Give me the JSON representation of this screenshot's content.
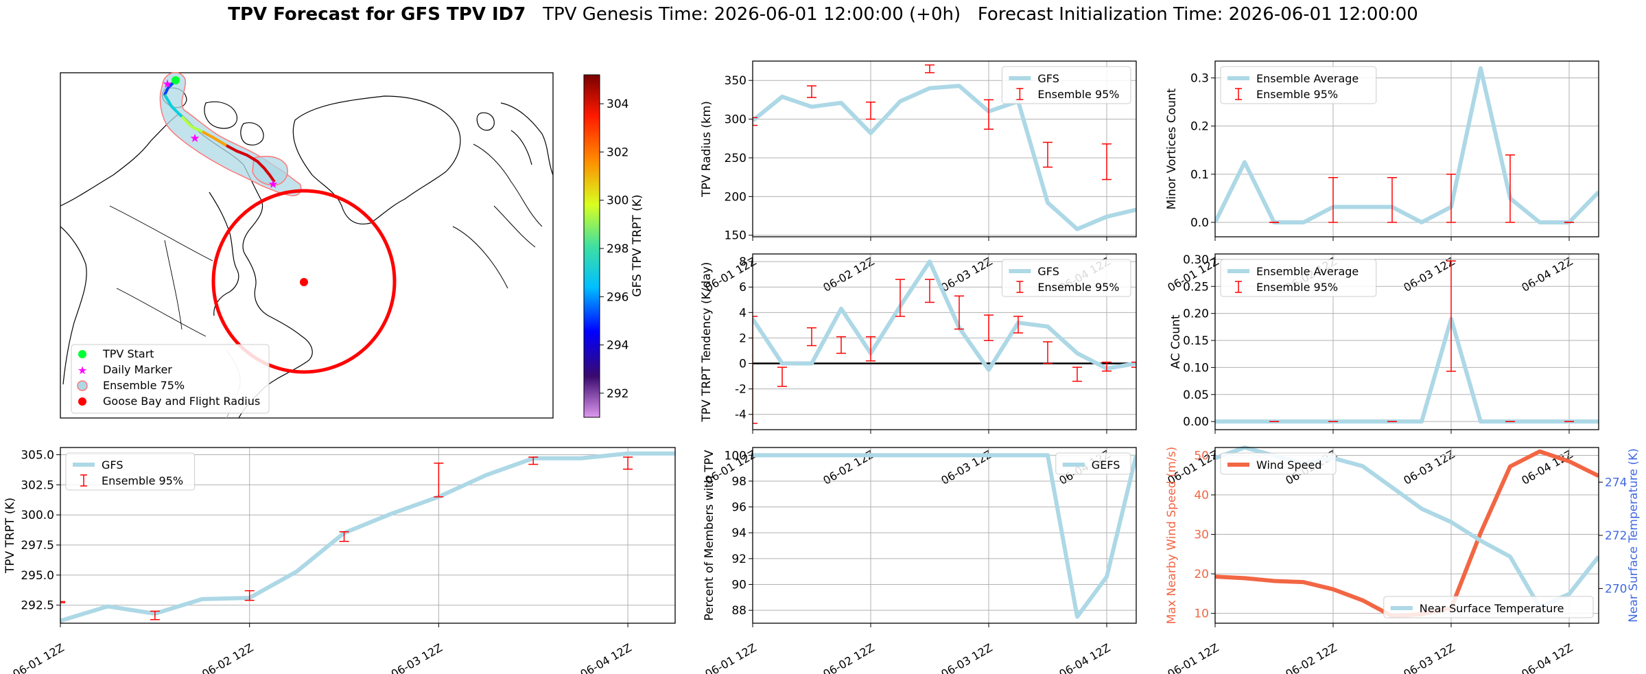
{
  "header": {
    "title_bold": "TPV Forecast for GFS TPV ID7",
    "title_rest": "TPV Genesis Time: 2026-06-01 12:00:00 (+0h)   Forecast Initialization Time: 2026-06-01 12:00:00"
  },
  "colors": {
    "gfs": "#add8e6",
    "ens": "#ff0000",
    "wind": "#f26644",
    "temp_axis": "#4169e1"
  },
  "map_legend": [
    "TPV Start",
    "Daily Marker",
    "Ensemble 75%",
    "Goose Bay and Flight Radius"
  ],
  "colorbar": {
    "label": "GFS TPV TRPT (K)",
    "ticks": [
      "304",
      "302",
      "300",
      "298",
      "296",
      "294",
      "292"
    ],
    "range": [
      291,
      305.2
    ]
  },
  "chart_data": [
    {
      "id": "radius",
      "type": "line",
      "x_dates": [
        "06-01 12Z",
        "06-02 12Z",
        "06-03 12Z",
        "06-04 12Z"
      ],
      "xlim": [
        0,
        3.25
      ],
      "ylabel": "TPV Radius (km)",
      "ylim": [
        148,
        375
      ],
      "yticks": [
        150,
        200,
        250,
        300,
        350
      ],
      "series": [
        {
          "name": "GFS",
          "x": [
            0,
            0.25,
            0.5,
            0.75,
            1,
            1.25,
            1.5,
            1.75,
            2,
            2.25,
            2.5,
            2.75,
            3,
            3.25
          ],
          "values": [
            298,
            329,
            316,
            321,
            282,
            323,
            340,
            343,
            310,
            323,
            192,
            158,
            174,
            183
          ]
        }
      ],
      "errorbars": {
        "name": "Ensemble 95%",
        "x": [
          0,
          0.5,
          1,
          1.5,
          2,
          2.5,
          3
        ],
        "low": [
          292,
          328,
          300,
          360,
          287,
          238,
          222
        ],
        "high": [
          302,
          343,
          322,
          370,
          325,
          270,
          268
        ]
      },
      "legend": [
        "GFS",
        "Ensemble 95%"
      ]
    },
    {
      "id": "minor",
      "type": "line",
      "x_dates": [
        "06-01 12Z",
        "06-02 12Z",
        "06-03 12Z",
        "06-04 12Z"
      ],
      "xlim": [
        0,
        3.25
      ],
      "ylabel": "Minor Vortices Count",
      "ylim": [
        -0.03,
        0.335
      ],
      "yticks": [
        "0.0",
        "0.1",
        "0.2",
        "0.3"
      ],
      "series": [
        {
          "name": "Ensemble Average",
          "x": [
            0,
            0.25,
            0.5,
            0.75,
            1,
            1.25,
            1.5,
            1.75,
            2,
            2.25,
            2.5,
            2.75,
            3,
            3.25
          ],
          "values": [
            0,
            0.125,
            0,
            0,
            0.032,
            0.032,
            0.032,
            0,
            0.032,
            0.32,
            0.05,
            0,
            0,
            0.063
          ]
        }
      ],
      "errorbars": {
        "name": "Ensemble 95%",
        "x": [
          0.5,
          1,
          1.5,
          2,
          2.5,
          3
        ],
        "low": [
          0,
          0,
          0,
          0,
          0,
          0
        ],
        "high": [
          0,
          0.093,
          0.093,
          0.1,
          0.14,
          0
        ]
      },
      "legend": [
        "Ensemble Average",
        "Ensemble 95%"
      ]
    },
    {
      "id": "tendency",
      "type": "line",
      "x_dates": [
        "06-01 12Z",
        "06-02 12Z",
        "06-03 12Z",
        "06-04 12Z"
      ],
      "xlim": [
        0,
        3.25
      ],
      "ylabel": "TPV TRPT Tendency (K/day)",
      "ylim": [
        -5.2,
        8.6
      ],
      "yticks": [
        -4,
        -2,
        0,
        2,
        4,
        6,
        8
      ],
      "series": [
        {
          "name": "GFS",
          "x": [
            0,
            0.25,
            0.5,
            0.75,
            1,
            1.25,
            1.5,
            1.75,
            2,
            2.25,
            2.5,
            2.75,
            3,
            3.25
          ],
          "values": [
            3.5,
            0,
            0,
            4.3,
            0.8,
            4.5,
            8,
            2.8,
            -0.5,
            3.2,
            2.9,
            0.8,
            -0.4,
            0
          ]
        }
      ],
      "errorbars": {
        "name": "Ensemble 95%",
        "x": [
          0,
          0.25,
          0.5,
          0.75,
          1,
          1.25,
          1.5,
          1.75,
          2,
          2.25,
          2.5,
          2.75,
          3,
          3.25
        ],
        "low": [
          -4.7,
          -1.8,
          1.4,
          0.8,
          0.2,
          3.7,
          4.8,
          2.7,
          1.8,
          2.4,
          0,
          -1.4,
          -0.6,
          -0.3
        ],
        "high": [
          3.7,
          -0.3,
          2.8,
          2.1,
          2.1,
          6.6,
          6.6,
          5.3,
          3.8,
          3.7,
          1.7,
          -0.3,
          0.1,
          0.1
        ]
      },
      "legend": [
        "GFS",
        "Ensemble 95%"
      ]
    },
    {
      "id": "ac",
      "type": "line",
      "x_dates": [
        "06-01 12Z",
        "06-02 12Z",
        "06-03 12Z",
        "06-04 12Z"
      ],
      "xlim": [
        0,
        3.25
      ],
      "ylabel": "AC Count",
      "ylim": [
        -0.015,
        0.31
      ],
      "yticks": [
        "0.00",
        "0.05",
        "0.10",
        "0.15",
        "0.20",
        "0.25",
        "0.30"
      ],
      "series": [
        {
          "name": "Ensemble Average",
          "x": [
            0,
            0.25,
            0.5,
            0.75,
            1,
            1.25,
            1.5,
            1.75,
            2,
            2.25,
            2.5,
            2.75,
            3,
            3.25
          ],
          "values": [
            0,
            0,
            0,
            0,
            0,
            0,
            0,
            0,
            0.19,
            0,
            0,
            0,
            0,
            0
          ]
        }
      ],
      "errorbars": {
        "name": "Ensemble 95%",
        "x": [
          0.5,
          1,
          1.5,
          2,
          2.5,
          3
        ],
        "low": [
          0,
          0,
          0,
          0.093,
          0,
          0
        ],
        "high": [
          0,
          0,
          0,
          0.297,
          0,
          0
        ]
      },
      "legend": [
        "Ensemble Average",
        "Ensemble 95%"
      ]
    },
    {
      "id": "trpt",
      "type": "line",
      "x_dates": [
        "06-01 12Z",
        "06-02 12Z",
        "06-03 12Z",
        "06-04 12Z"
      ],
      "xlim": [
        0,
        3.25
      ],
      "ylabel": "TPV TRPT (K)",
      "ylim": [
        291,
        305.6
      ],
      "yticks": [
        "292.5",
        "295.0",
        "297.5",
        "300.0",
        "302.5",
        "305.0"
      ],
      "series": [
        {
          "name": "GFS",
          "x": [
            0,
            0.25,
            0.5,
            0.75,
            1,
            1.25,
            1.5,
            1.75,
            2,
            2.25,
            2.5,
            2.75,
            3,
            3.25
          ],
          "values": [
            291.2,
            292.4,
            291.8,
            293,
            293.1,
            295.3,
            298.5,
            300.1,
            301.5,
            303.3,
            304.7,
            304.7,
            305.1,
            305.1
          ]
        }
      ],
      "errorbars": {
        "name": "Ensemble 95%",
        "x": [
          0,
          0.5,
          1,
          1.5,
          2,
          2.5,
          3
        ],
        "low": [
          292.7,
          291.3,
          292.9,
          297.8,
          301.5,
          304.2,
          303.8
        ],
        "high": [
          292.8,
          292,
          293.7,
          298.6,
          304.3,
          304.8,
          304.8
        ]
      },
      "legend": [
        "GFS",
        "Ensemble 95%"
      ]
    },
    {
      "id": "percent",
      "type": "line",
      "x_dates": [
        "06-01 12Z",
        "06-02 12Z",
        "06-03 12Z",
        "06-04 12Z"
      ],
      "xlim": [
        0,
        3.25
      ],
      "ylabel": "Percent of Members with TPV",
      "ylim": [
        87,
        100.6
      ],
      "yticks": [
        88,
        90,
        92,
        94,
        96,
        98,
        100
      ],
      "series": [
        {
          "name": "GEFS",
          "x": [
            0,
            0.25,
            0.5,
            0.75,
            1,
            1.25,
            1.5,
            1.75,
            2,
            2.25,
            2.5,
            2.75,
            3,
            3.25
          ],
          "values": [
            100,
            100,
            100,
            100,
            100,
            100,
            100,
            100,
            100,
            100,
            100,
            87.5,
            90.6,
            100
          ]
        }
      ],
      "legend": [
        "GEFS"
      ]
    },
    {
      "id": "wind",
      "type": "line",
      "x_dates": [
        "06-01 12Z",
        "06-02 12Z",
        "06-03 12Z",
        "06-04 12Z"
      ],
      "xlim": [
        0,
        3.25
      ],
      "ylabel": "Max Nearby Wind Speed (m/s)",
      "ylabel2": "Near Surface Temperature (K)",
      "ylim": [
        7.5,
        52
      ],
      "yticks": [
        10,
        20,
        30,
        40,
        50
      ],
      "ylim2": [
        268.7,
        275.3
      ],
      "yticks2": [
        270,
        272,
        274
      ],
      "series": [
        {
          "name": "Wind Speed",
          "axis": "left",
          "x": [
            0,
            0.25,
            0.5,
            0.75,
            1,
            1.25,
            1.5,
            1.75,
            2,
            2.25,
            2.5,
            2.75,
            3,
            3.25
          ],
          "values": [
            19.3,
            18.9,
            18.2,
            17.9,
            16.1,
            13.3,
            9.3,
            9.8,
            11.3,
            30.4,
            47.2,
            51,
            48.5,
            44.8
          ]
        },
        {
          "name": "Near Surface Temperature",
          "axis": "right",
          "x": [
            0,
            0.25,
            0.5,
            0.75,
            1,
            1.25,
            1.5,
            1.75,
            2,
            2.25,
            2.5,
            2.75,
            3,
            3.25
          ],
          "values": [
            274.9,
            275.3,
            275,
            274.7,
            274.9,
            274.6,
            273.8,
            273,
            272.5,
            271.8,
            271.2,
            269.3,
            269.8,
            271.2
          ]
        }
      ],
      "legend": [
        "Wind Speed",
        "Near Surface Temperature"
      ]
    }
  ]
}
